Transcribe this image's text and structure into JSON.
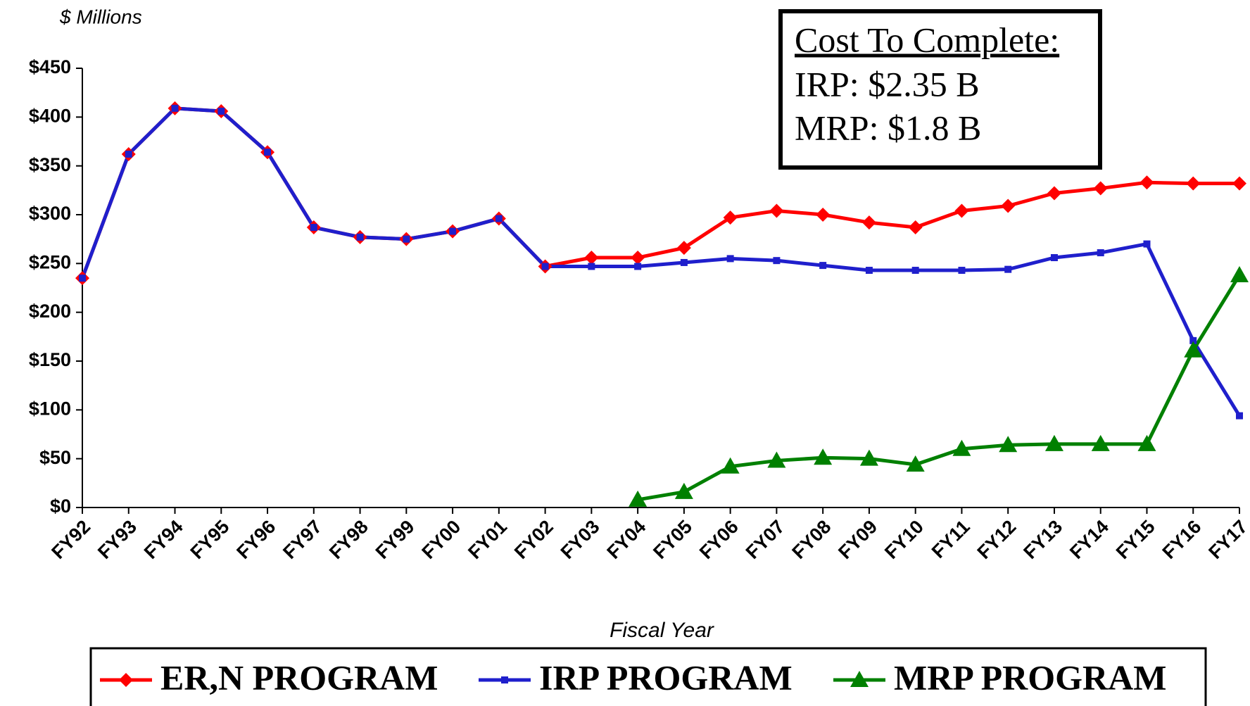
{
  "chart_data": {
    "type": "line",
    "ylabel": "$ Millions",
    "xlabel": "Fiscal Year",
    "categories": [
      "FY92",
      "FY93",
      "FY94",
      "FY95",
      "FY96",
      "FY97",
      "FY98",
      "FY99",
      "FY00",
      "FY01",
      "FY02",
      "FY03",
      "FY04",
      "FY05",
      "FY06",
      "FY07",
      "FY08",
      "FY09",
      "FY10",
      "FY11",
      "FY12",
      "FY13",
      "FY14",
      "FY15",
      "FY16",
      "FY17"
    ],
    "series": [
      {
        "name": "ER,N PROGRAM",
        "color": "#ff0000",
        "marker": "diamond",
        "values": [
          235,
          362,
          409,
          406,
          364,
          287,
          277,
          275,
          283,
          296,
          247,
          256,
          256,
          266,
          297,
          304,
          300,
          292,
          287,
          304,
          309,
          322,
          327,
          333,
          332,
          332
        ]
      },
      {
        "name": "IRP PROGRAM",
        "color": "#1f1fcc",
        "marker": "square",
        "values": [
          235,
          362,
          409,
          406,
          364,
          287,
          277,
          275,
          283,
          296,
          247,
          247,
          247,
          251,
          255,
          253,
          248,
          243,
          243,
          243,
          244,
          256,
          261,
          270,
          171,
          94
        ]
      },
      {
        "name": "MRP PROGRAM",
        "color": "#008000",
        "marker": "triangle",
        "values": [
          null,
          null,
          null,
          null,
          null,
          null,
          null,
          null,
          null,
          null,
          null,
          null,
          8,
          16,
          42,
          48,
          51,
          50,
          44,
          60,
          64,
          65,
          65,
          65,
          161,
          238
        ]
      }
    ],
    "ylim": [
      0,
      450
    ],
    "yticks": [
      {
        "value": 0,
        "label": "$0"
      },
      {
        "value": 50,
        "label": "$50"
      },
      {
        "value": 100,
        "label": "$100"
      },
      {
        "value": 150,
        "label": "$150"
      },
      {
        "value": 200,
        "label": "$200"
      },
      {
        "value": 250,
        "label": "$250"
      },
      {
        "value": 300,
        "label": "$300"
      },
      {
        "value": 350,
        "label": "$350"
      },
      {
        "value": 400,
        "label": "$400"
      },
      {
        "value": 450,
        "label": "$450"
      }
    ],
    "annotation": [
      "Cost To Complete:",
      "IRP: $2.35 B",
      "MRP: $1.8 B"
    ],
    "legend": "bottom"
  }
}
